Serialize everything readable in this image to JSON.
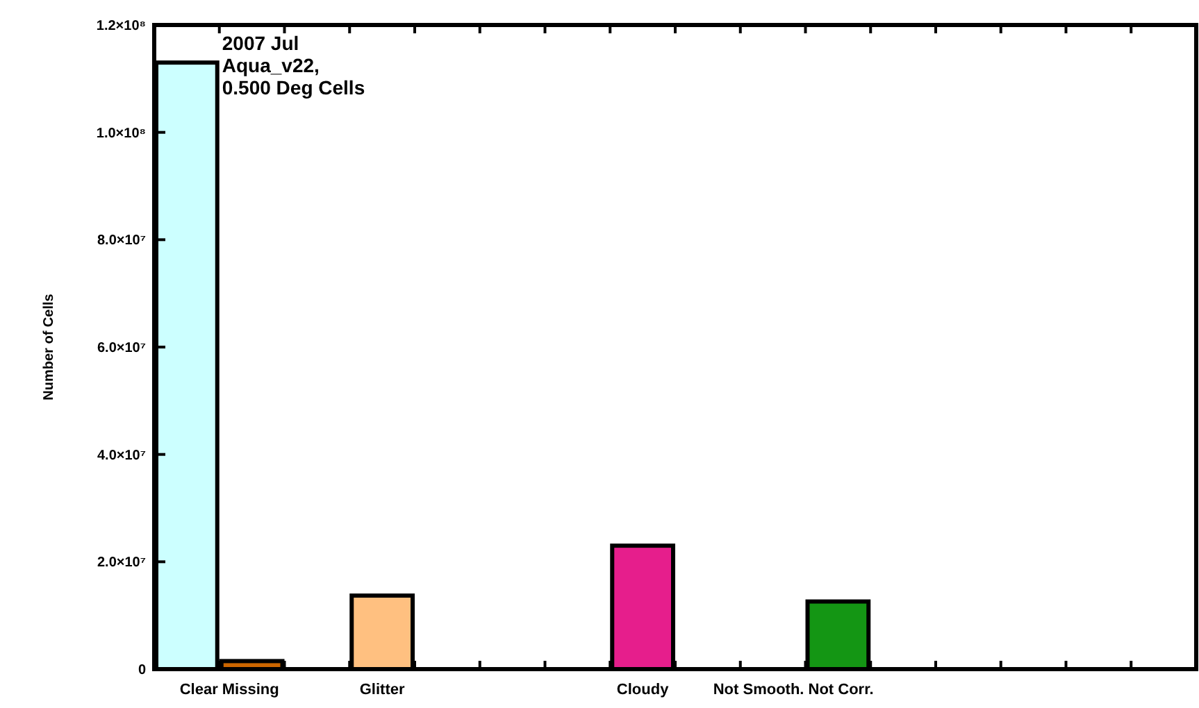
{
  "chart_data": {
    "type": "bar",
    "ylabel": "Number of Cells",
    "categories": [
      "Clear",
      "Missing",
      null,
      "Glitter",
      null,
      null,
      null,
      "Cloudy",
      null,
      "Not Smooth.",
      "Not Corr.",
      null,
      null,
      null,
      null,
      null
    ],
    "values": [
      113000000,
      1500000,
      0,
      13700000,
      0,
      0,
      0,
      23000000,
      0,
      null,
      12600000,
      0,
      0,
      null,
      null,
      0
    ],
    "colors": [
      "#ccffff",
      "#cc6600",
      "#ffffff",
      "#ffc080",
      "#ffffff",
      "#ffffff",
      "#ffffff",
      "#e61e8c",
      "#ffffff",
      null,
      "#149614",
      "#ffffff",
      "#ffffff",
      null,
      null,
      "#ffffff"
    ],
    "ylim": [
      0,
      120000000
    ],
    "yticks": [
      {
        "value": 0,
        "label": "0"
      },
      {
        "value": 20000000,
        "label": "2.0×10⁷"
      },
      {
        "value": 40000000,
        "label": "4.0×10⁷"
      },
      {
        "value": 60000000,
        "label": "6.0×10⁷"
      },
      {
        "value": 80000000,
        "label": "8.0×10⁷"
      },
      {
        "value": 100000000,
        "label": "1.0×10⁸"
      },
      {
        "value": 120000000,
        "label": "1.2×10⁸"
      }
    ],
    "annotations": [
      "2007 Jul\nAqua_v22,\n0.500 Deg Cells"
    ],
    "grid": false
  }
}
